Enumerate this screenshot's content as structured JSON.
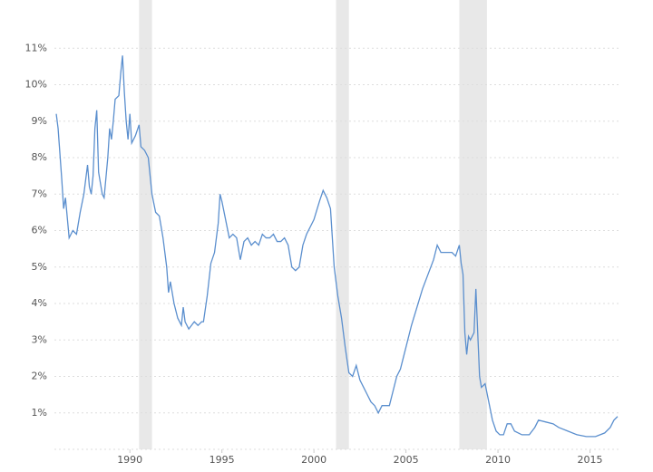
{
  "chart_data": {
    "type": "line",
    "color": "#5b8fce",
    "grid": true,
    "xlim": [
      1985.9,
      2016.6
    ],
    "ylim": [
      0,
      12
    ],
    "xticks": [
      1990,
      1995,
      2000,
      2005,
      2010,
      2015
    ],
    "yticks": [
      {
        "value": 1,
        "label": "1%"
      },
      {
        "value": 2,
        "label": "2%"
      },
      {
        "value": 3,
        "label": "3%"
      },
      {
        "value": 4,
        "label": "4%"
      },
      {
        "value": 5,
        "label": "5%"
      },
      {
        "value": 6,
        "label": "6%"
      },
      {
        "value": 7,
        "label": "7%"
      },
      {
        "value": 8,
        "label": "8%"
      },
      {
        "value": 9,
        "label": "9%"
      },
      {
        "value": 10,
        "label": "10%"
      },
      {
        "value": 11,
        "label": "11%"
      }
    ],
    "shaded_regions": [
      [
        1990.5,
        1991.2
      ],
      [
        2001.2,
        2001.9
      ],
      [
        2007.9,
        2009.4
      ]
    ],
    "x": [
      1986.0,
      1986.1,
      1986.3,
      1986.4,
      1986.5,
      1986.7,
      1986.9,
      1987.1,
      1987.3,
      1987.5,
      1987.7,
      1987.8,
      1987.9,
      1988.0,
      1988.1,
      1988.2,
      1988.3,
      1988.5,
      1988.6,
      1988.8,
      1988.9,
      1989.0,
      1989.1,
      1989.2,
      1989.4,
      1989.5,
      1989.6,
      1989.7,
      1989.8,
      1989.9,
      1990.0,
      1990.1,
      1990.3,
      1990.5,
      1990.6,
      1990.8,
      1991.0,
      1991.2,
      1991.4,
      1991.6,
      1991.8,
      1992.0,
      1992.1,
      1992.2,
      1992.4,
      1992.6,
      1992.8,
      1992.9,
      1993.0,
      1993.2,
      1993.5,
      1993.7,
      1993.9,
      1994.0,
      1994.2,
      1994.4,
      1994.6,
      1994.8,
      1994.9,
      1995.0,
      1995.2,
      1995.4,
      1995.6,
      1995.8,
      1996.0,
      1996.2,
      1996.4,
      1996.6,
      1996.8,
      1997.0,
      1997.2,
      1997.4,
      1997.6,
      1997.8,
      1998.0,
      1998.2,
      1998.4,
      1998.6,
      1998.8,
      1999.0,
      1999.2,
      1999.4,
      1999.6,
      1999.8,
      2000.0,
      2000.3,
      2000.5,
      2000.7,
      2000.9,
      2001.1,
      2001.3,
      2001.5,
      2001.7,
      2001.9,
      2002.1,
      2002.3,
      2002.5,
      2002.7,
      2002.9,
      2003.1,
      2003.3,
      2003.5,
      2003.7,
      2003.9,
      2004.1,
      2004.3,
      2004.5,
      2004.7,
      2005.0,
      2005.3,
      2005.6,
      2005.9,
      2006.2,
      2006.5,
      2006.7,
      2006.9,
      2007.2,
      2007.5,
      2007.7,
      2007.9,
      2008.0,
      2008.1,
      2008.2,
      2008.3,
      2008.4,
      2008.5,
      2008.7,
      2008.8,
      2008.9,
      2009.0,
      2009.1,
      2009.3,
      2009.5,
      2009.7,
      2009.9,
      2010.1,
      2010.3,
      2010.5,
      2010.7,
      2010.9,
      2011.3,
      2011.7,
      2012.0,
      2012.2,
      2012.6,
      2013.0,
      2013.3,
      2013.8,
      2014.3,
      2014.8,
      2015.3,
      2015.8,
      2016.1,
      2016.3,
      2016.5
    ],
    "values": [
      9.2,
      8.8,
      7.4,
      6.6,
      6.9,
      5.8,
      6.0,
      5.9,
      6.5,
      7.0,
      7.8,
      7.2,
      7.0,
      7.5,
      8.8,
      9.3,
      7.6,
      7.0,
      6.9,
      8.0,
      8.8,
      8.5,
      9.0,
      9.6,
      9.7,
      10.3,
      10.8,
      9.8,
      9.0,
      8.5,
      9.2,
      8.4,
      8.6,
      8.9,
      8.3,
      8.2,
      8.0,
      7.0,
      6.5,
      6.4,
      5.8,
      5.0,
      4.3,
      4.6,
      4.0,
      3.6,
      3.4,
      3.9,
      3.5,
      3.3,
      3.5,
      3.4,
      3.5,
      3.5,
      4.2,
      5.1,
      5.4,
      6.2,
      7.0,
      6.8,
      6.3,
      5.8,
      5.9,
      5.8,
      5.2,
      5.7,
      5.8,
      5.6,
      5.7,
      5.6,
      5.9,
      5.8,
      5.8,
      5.9,
      5.7,
      5.7,
      5.8,
      5.6,
      5.0,
      4.9,
      5.0,
      5.6,
      5.9,
      6.1,
      6.3,
      6.8,
      7.1,
      6.9,
      6.6,
      5.0,
      4.2,
      3.6,
      2.8,
      2.1,
      2.0,
      2.3,
      1.9,
      1.7,
      1.5,
      1.3,
      1.2,
      1.0,
      1.2,
      1.2,
      1.2,
      1.6,
      2.0,
      2.2,
      2.8,
      3.4,
      3.9,
      4.4,
      4.8,
      5.2,
      5.6,
      5.4,
      5.4,
      5.4,
      5.3,
      5.6,
      5.1,
      4.8,
      3.2,
      2.6,
      3.1,
      3.0,
      3.2,
      4.4,
      3.2,
      2.0,
      1.7,
      1.8,
      1.3,
      0.8,
      0.5,
      0.4,
      0.4,
      0.7,
      0.7,
      0.5,
      0.4,
      0.4,
      0.6,
      0.8,
      0.75,
      0.7,
      0.6,
      0.5,
      0.4,
      0.35,
      0.35,
      0.45,
      0.6,
      0.8,
      0.9
    ]
  }
}
